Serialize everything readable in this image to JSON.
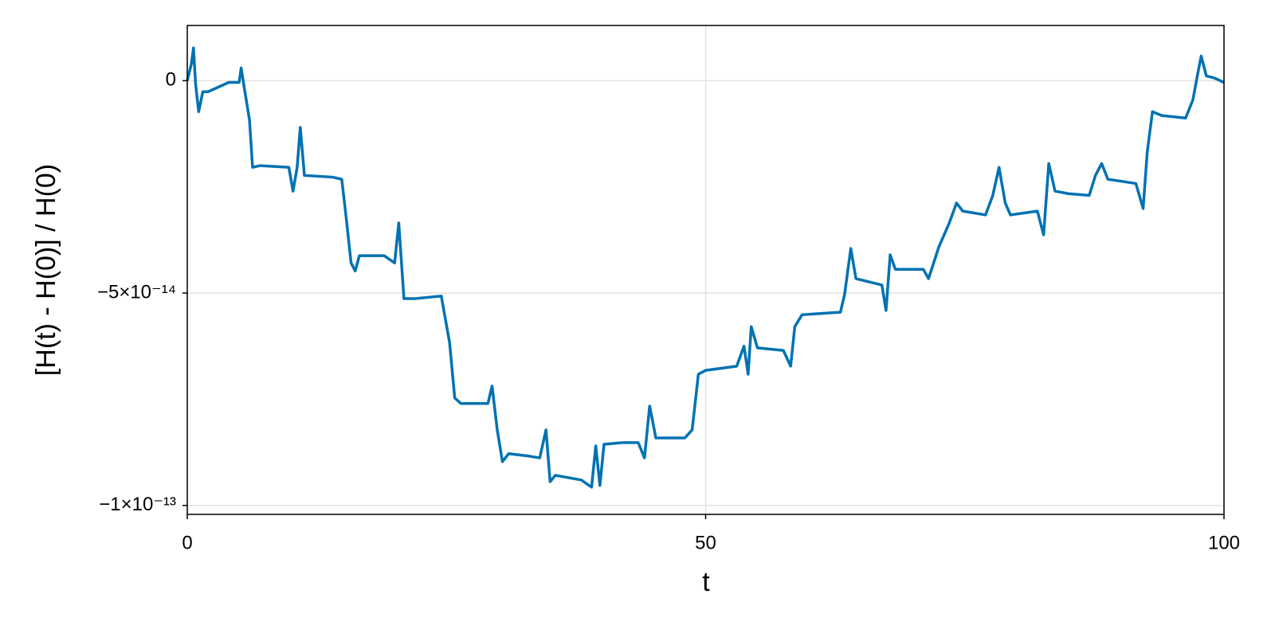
{
  "chart_data": {
    "type": "line",
    "x_label": "t",
    "y_label": "[H(t) - H(0)] / H(0)",
    "xlim": [
      0,
      100
    ],
    "xticks": [
      0,
      50,
      100
    ],
    "ylim": [
      -1.021e-13,
      1.3e-14
    ],
    "yticks": [
      {
        "value": -1e-13,
        "label": "−1×10⁻¹³"
      },
      {
        "value": -5e-14,
        "label": "−5×10⁻¹⁴"
      },
      0
    ],
    "grid": true,
    "x": [
      0,
      0.4,
      0.6,
      0.8,
      1.1,
      1.5,
      2,
      4,
      5,
      5.2,
      5.5,
      6,
      6.3,
      7,
      9.8,
      10.2,
      10.6,
      10.9,
      11.3,
      14,
      14.9,
      15.3,
      15.8,
      16.2,
      16.6,
      19,
      20,
      20.4,
      20.9,
      22,
      24.5,
      25.3,
      25.8,
      26.4,
      29,
      29.4,
      29.9,
      30.4,
      31,
      33,
      34,
      34.6,
      35,
      35.5,
      38,
      39,
      39.4,
      39.8,
      40.2,
      42,
      43.5,
      44.1,
      44.6,
      45.2,
      48,
      48.7,
      49.3,
      50,
      53,
      53.7,
      54.1,
      54.4,
      55,
      57.5,
      58.2,
      58.6,
      59.3,
      63,
      63.4,
      64,
      64.5,
      67,
      67.4,
      67.8,
      68.3,
      71,
      71.5,
      72.5,
      73.5,
      74.2,
      74.8,
      77,
      77.7,
      78.3,
      78.9,
      79.4,
      82,
      82.6,
      83.1,
      83.7,
      85,
      87,
      87.6,
      88.2,
      88.8,
      91.5,
      92.2,
      92.6,
      93.1,
      94,
      96.3,
      97,
      97.5,
      97.8,
      98.3,
      99,
      100
    ],
    "series": [
      {
        "color": "#0072b2",
        "values": [
          0,
          4e-15,
          7.7e-15,
          -7e-16,
          -7.3e-15,
          -2.6e-15,
          -2.6e-15,
          -4e-16,
          -4e-16,
          3e-15,
          -1.7e-15,
          -9.2e-15,
          -2.04e-14,
          -2e-14,
          -2.04e-14,
          -2.6e-14,
          -2.04e-14,
          -1.1e-14,
          -2.23e-14,
          -2.27e-14,
          -2.32e-14,
          -3.16e-14,
          -4.29e-14,
          -4.48e-14,
          -4.12e-14,
          -4.12e-14,
          -4.29e-14,
          -3.35e-14,
          -5.13e-14,
          -5.13e-14,
          -5.07e-14,
          -6.16e-14,
          -7.47e-14,
          -7.6e-14,
          -7.6e-14,
          -7.19e-14,
          -8.22e-14,
          -8.97e-14,
          -8.78e-14,
          -8.84e-14,
          -8.88e-14,
          -8.22e-14,
          -9.44e-14,
          -9.29e-14,
          -9.4e-14,
          -9.57e-14,
          -8.6e-14,
          -9.53e-14,
          -8.56e-14,
          -8.52e-14,
          -8.52e-14,
          -8.88e-14,
          -7.66e-14,
          -8.41e-14,
          -8.41e-14,
          -8.22e-14,
          -6.91e-14,
          -6.82e-14,
          -6.72e-14,
          -6.25e-14,
          -6.91e-14,
          -5.79e-14,
          -6.29e-14,
          -6.35e-14,
          -6.72e-14,
          -5.79e-14,
          -5.51e-14,
          -5.45e-14,
          -5.04e-14,
          -3.95e-14,
          -4.66e-14,
          -4.81e-14,
          -5.41e-14,
          -4.1e-14,
          -4.44e-14,
          -4.44e-14,
          -4.66e-14,
          -3.91e-14,
          -3.35e-14,
          -2.88e-14,
          -3.07e-14,
          -3.16e-14,
          -2.7e-14,
          -2.04e-14,
          -2.88e-14,
          -3.16e-14,
          -3.07e-14,
          -3.63e-14,
          -1.95e-14,
          -2.6e-14,
          -2.66e-14,
          -2.7e-14,
          -2.23e-14,
          -1.95e-14,
          -2.32e-14,
          -2.42e-14,
          -3.01e-14,
          -1.67e-14,
          -7.3e-15,
          -8.2e-15,
          -8.8e-15,
          -4.5e-15,
          2.1e-15,
          5.8e-15,
          1.1e-15,
          7e-16,
          -4e-16
        ]
      }
    ]
  }
}
